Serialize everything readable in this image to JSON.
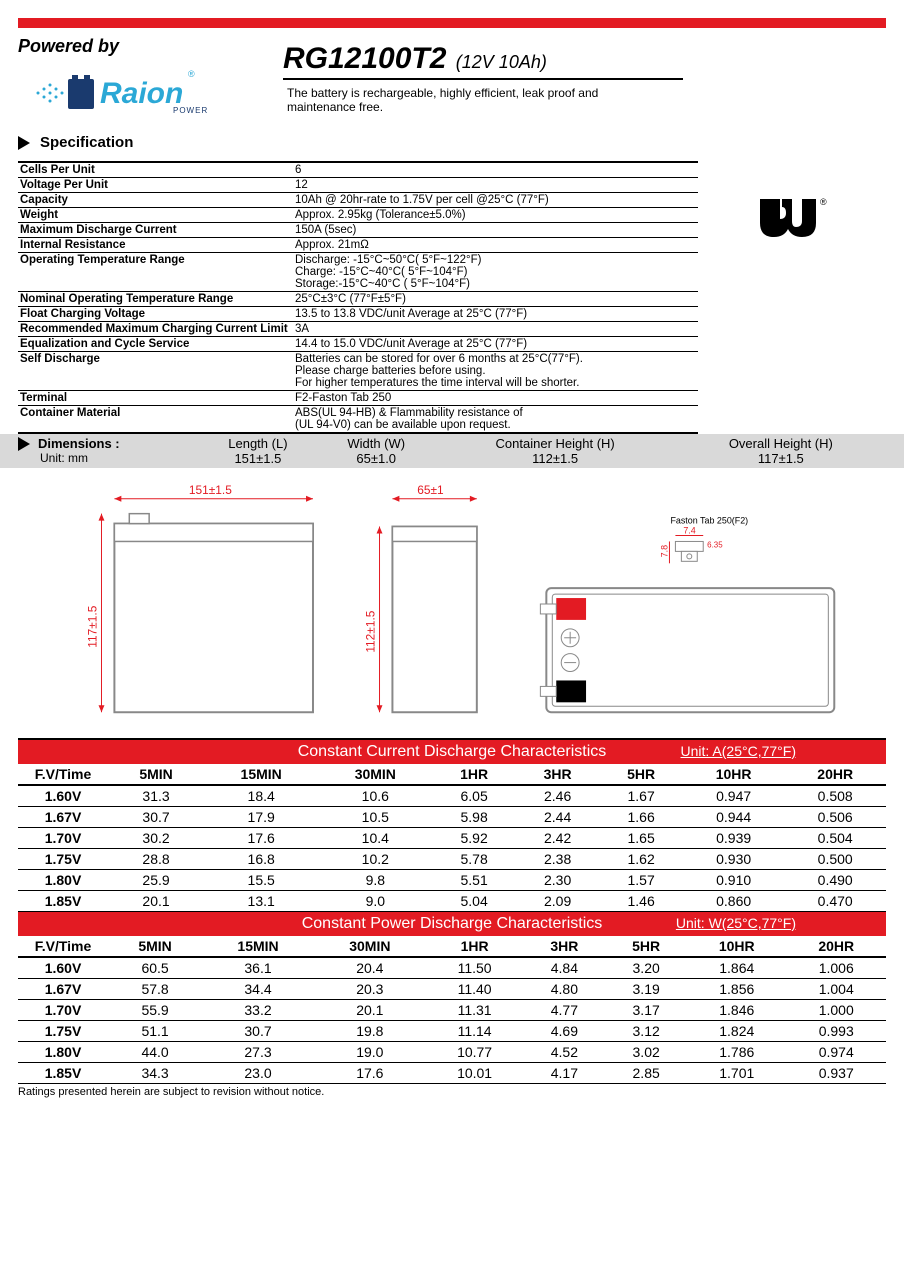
{
  "header": {
    "powered_by": "Powered by",
    "brand": "Raion",
    "brand_sub": "POWER",
    "product": "RG12100T2",
    "rating": "(12V 10Ah)",
    "description": "The battery is rechargeable, highly efficient, leak proof and maintenance free.",
    "accent_color": "#e31b23",
    "logo_color": "#2ba8d6",
    "logo_dark": "#1a3a6e"
  },
  "specification": {
    "heading": "Specification",
    "rows": [
      {
        "label": "Cells Per Unit",
        "value": "6"
      },
      {
        "label": "Voltage Per Unit",
        "value": "12"
      },
      {
        "label": "Capacity",
        "value": "10Ah @ 20hr-rate to 1.75V per cell @25°C (77°F)"
      },
      {
        "label": "Weight",
        "value": "Approx. 2.95kg (Tolerance±5.0%)"
      },
      {
        "label": "Maximum Discharge Current",
        "value": "150A (5sec)"
      },
      {
        "label": "Internal Resistance",
        "value": "Approx. 21mΩ"
      },
      {
        "label": "Operating Temperature Range",
        "value": "Discharge: -15°C~50°C( 5°F~122°F)\nCharge: -15°C~40°C( 5°F~104°F)\nStorage:-15°C~40°C ( 5°F~104°F)"
      },
      {
        "label": "Nominal Operating Temperature Range",
        "value": " 25°C±3°C (77°F±5°F)"
      },
      {
        "label": "Float Charging Voltage",
        "value": "13.5 to 13.8 VDC/unit Average at 25°C (77°F)"
      },
      {
        "label": "Recommended Maximum Charging Current Limit",
        "value": "3A"
      },
      {
        "label": "Equalization and Cycle Service",
        "value": "14.4 to 15.0 VDC/unit Average at 25°C (77°F)"
      },
      {
        "label": "Self Discharge",
        "value": "Batteries can be stored for over 6 months at 25°C(77°F).\nPlease charge batteries before using.\nFor higher temperatures the time interval will be shorter."
      },
      {
        "label": "Terminal",
        "value": "F2-Faston Tab 250"
      },
      {
        "label": "Container Material",
        "value": "ABS(UL 94-HB) & Flammability resistance of\n(UL 94-V0) can be available upon request."
      }
    ]
  },
  "dimensions": {
    "heading": "Dimensions :",
    "unit": "Unit: mm",
    "columns": [
      "Length (L)",
      "Width (W)",
      "Container Height (H)",
      "Overall Height (H)"
    ],
    "values": [
      "151±1.5",
      "65±1.0",
      "112±1.5",
      "117±1.5"
    ]
  },
  "diagram": {
    "front_top": "151±1.5",
    "front_side": "117±1.5",
    "side_top": "65±1",
    "side_left": "112±1.5",
    "faston_label": "Faston Tab 250(F2)",
    "faston_w": "7.4",
    "faston_h": "7.8",
    "faston_t": "6.35",
    "dim_color": "#e31b23",
    "terminal_red": "#e31b23",
    "terminal_black": "#000000"
  },
  "discharge_current": {
    "title": "Constant Current Discharge Characteristics",
    "unit": "Unit: A(25°C,77°F)",
    "headers": [
      "F.V/Time",
      "5MIN",
      "15MIN",
      "30MIN",
      "1HR",
      "3HR",
      "5HR",
      "10HR",
      "20HR"
    ],
    "rows": [
      [
        "1.60V",
        "31.3",
        "18.4",
        "10.6",
        "6.05",
        "2.46",
        "1.67",
        "0.947",
        "0.508"
      ],
      [
        "1.67V",
        "30.7",
        "17.9",
        "10.5",
        "5.98",
        "2.44",
        "1.66",
        "0.944",
        "0.506"
      ],
      [
        "1.70V",
        "30.2",
        "17.6",
        "10.4",
        "5.92",
        "2.42",
        "1.65",
        "0.939",
        "0.504"
      ],
      [
        "1.75V",
        "28.8",
        "16.8",
        "10.2",
        "5.78",
        "2.38",
        "1.62",
        "0.930",
        "0.500"
      ],
      [
        "1.80V",
        "25.9",
        "15.5",
        "9.8",
        "5.51",
        "2.30",
        "1.57",
        "0.910",
        "0.490"
      ],
      [
        "1.85V",
        "20.1",
        "13.1",
        "9.0",
        "5.04",
        "2.09",
        "1.46",
        "0.860",
        "0.470"
      ]
    ]
  },
  "discharge_power": {
    "title": "Constant Power Discharge Characteristics",
    "unit": "Unit: W(25°C,77°F)",
    "headers": [
      "F.V/Time",
      "5MIN",
      "15MIN",
      "30MIN",
      "1HR",
      "3HR",
      "5HR",
      "10HR",
      "20HR"
    ],
    "rows": [
      [
        "1.60V",
        "60.5",
        "36.1",
        "20.4",
        "11.50",
        "4.84",
        "3.20",
        "1.864",
        "1.006"
      ],
      [
        "1.67V",
        "57.8",
        "34.4",
        "20.3",
        "11.40",
        "4.80",
        "3.19",
        "1.856",
        "1.004"
      ],
      [
        "1.70V",
        "55.9",
        "33.2",
        "20.1",
        "11.31",
        "4.77",
        "3.17",
        "1.846",
        "1.000"
      ],
      [
        "1.75V",
        "51.1",
        "30.7",
        "19.8",
        "11.14",
        "4.69",
        "3.12",
        "1.824",
        "0.993"
      ],
      [
        "1.80V",
        "44.0",
        "27.3",
        "19.0",
        "10.77",
        "4.52",
        "3.02",
        "1.786",
        "0.974"
      ],
      [
        "1.85V",
        "34.3",
        "23.0",
        "17.6",
        "10.01",
        "4.17",
        "2.85",
        "1.701",
        "0.937"
      ]
    ]
  },
  "footer": "Ratings presented herein are subject to revision without notice."
}
